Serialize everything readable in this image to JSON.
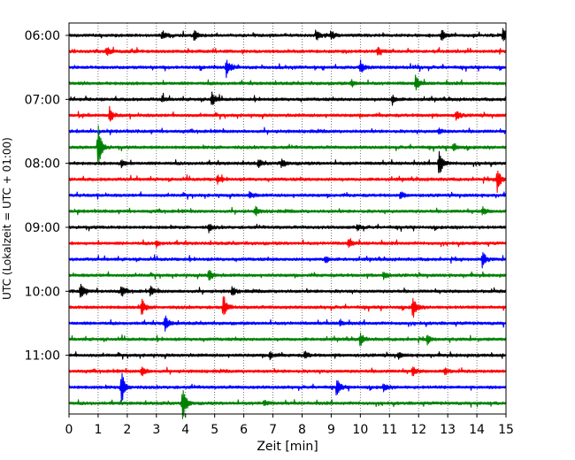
{
  "chart_data": {
    "type": "line",
    "subtype": "seismogram-helicorder",
    "xlabel": "Zeit  [min]",
    "ylabel": "UTC (Lokalzeit = UTC + 01:00)",
    "xlim": [
      0,
      15
    ],
    "x_ticks": [
      0,
      1,
      2,
      3,
      4,
      5,
      6,
      7,
      8,
      9,
      10,
      11,
      12,
      13,
      14,
      15
    ],
    "x_tick_labels": [
      "0",
      "1",
      "2",
      "3",
      "4",
      "5",
      "6",
      "7",
      "8",
      "9",
      "10",
      "11",
      "12",
      "13",
      "14",
      "15"
    ],
    "y_tick_labels": [
      "06:00",
      "07:00",
      "08:00",
      "09:00",
      "10:00",
      "11:00"
    ],
    "grid": "vertical dotted at each minute",
    "line_minutes": 15,
    "trace_color_cycle": [
      "#000000",
      "#ff0000",
      "#0000ff",
      "#008000"
    ],
    "traces": [
      {
        "start": "06:00",
        "color": "#000000",
        "events": [
          [
            3.2,
            0.3
          ],
          [
            4.3,
            0.35
          ],
          [
            8.5,
            0.3
          ],
          [
            9.0,
            0.3
          ],
          [
            12.8,
            0.35
          ],
          [
            14.9,
            0.45
          ]
        ]
      },
      {
        "start": "06:15",
        "color": "#ff0000",
        "events": [
          [
            1.3,
            0.3
          ],
          [
            10.6,
            0.25
          ]
        ]
      },
      {
        "start": "06:30",
        "color": "#0000ff",
        "events": [
          [
            5.4,
            0.6
          ],
          [
            10.0,
            0.45
          ]
        ]
      },
      {
        "start": "06:45",
        "color": "#008000",
        "events": [
          [
            11.9,
            0.55
          ],
          [
            9.7,
            0.2
          ]
        ]
      },
      {
        "start": "07:00",
        "color": "#000000",
        "events": [
          [
            4.9,
            0.5
          ],
          [
            11.1,
            0.3
          ],
          [
            3.2,
            0.2
          ]
        ]
      },
      {
        "start": "07:15",
        "color": "#ff0000",
        "events": [
          [
            1.4,
            0.45
          ],
          [
            13.3,
            0.35
          ]
        ]
      },
      {
        "start": "07:30",
        "color": "#0000ff",
        "events": [
          [
            12.7,
            0.2
          ]
        ]
      },
      {
        "start": "07:45",
        "color": "#008000",
        "events": [
          [
            1.0,
            1.6
          ],
          [
            13.2,
            0.3
          ]
        ]
      },
      {
        "start": "08:00",
        "color": "#000000",
        "events": [
          [
            1.8,
            0.3
          ],
          [
            6.5,
            0.25
          ],
          [
            7.3,
            0.3
          ],
          [
            12.7,
            1.0
          ]
        ]
      },
      {
        "start": "08:15",
        "color": "#ff0000",
        "events": [
          [
            14.7,
            0.8
          ],
          [
            5.1,
            0.25
          ]
        ]
      },
      {
        "start": "08:30",
        "color": "#0000ff",
        "events": [
          [
            6.2,
            0.25
          ],
          [
            11.4,
            0.2
          ]
        ]
      },
      {
        "start": "08:45",
        "color": "#008000",
        "events": [
          [
            6.4,
            0.3
          ],
          [
            14.2,
            0.25
          ]
        ]
      },
      {
        "start": "09:00",
        "color": "#000000",
        "events": [
          [
            4.8,
            0.25
          ],
          [
            9.9,
            0.2
          ]
        ]
      },
      {
        "start": "09:15",
        "color": "#ff0000",
        "events": [
          [
            9.6,
            0.3
          ],
          [
            3.0,
            0.2
          ]
        ]
      },
      {
        "start": "09:30",
        "color": "#0000ff",
        "events": [
          [
            14.2,
            0.5
          ],
          [
            8.8,
            0.25
          ]
        ]
      },
      {
        "start": "09:45",
        "color": "#008000",
        "events": [
          [
            4.8,
            0.45
          ],
          [
            10.8,
            0.25
          ]
        ]
      },
      {
        "start": "10:00",
        "color": "#000000",
        "events": [
          [
            0.4,
            0.6
          ],
          [
            1.8,
            0.35
          ],
          [
            2.8,
            0.3
          ],
          [
            5.6,
            0.3
          ]
        ]
      },
      {
        "start": "10:15",
        "color": "#ff0000",
        "events": [
          [
            2.5,
            0.55
          ],
          [
            5.3,
            0.8
          ],
          [
            11.8,
            0.8
          ]
        ]
      },
      {
        "start": "10:30",
        "color": "#0000ff",
        "events": [
          [
            3.3,
            0.6
          ],
          [
            9.3,
            0.2
          ]
        ]
      },
      {
        "start": "10:45",
        "color": "#008000",
        "events": [
          [
            10.0,
            0.45
          ],
          [
            12.3,
            0.3
          ]
        ]
      },
      {
        "start": "11:00",
        "color": "#000000",
        "events": [
          [
            6.9,
            0.25
          ],
          [
            8.1,
            0.25
          ],
          [
            11.3,
            0.2
          ]
        ]
      },
      {
        "start": "11:15",
        "color": "#ff0000",
        "events": [
          [
            2.5,
            0.35
          ],
          [
            11.8,
            0.3
          ],
          [
            12.9,
            0.25
          ]
        ]
      },
      {
        "start": "11:30",
        "color": "#0000ff",
        "events": [
          [
            1.8,
            1.2
          ],
          [
            9.2,
            0.6
          ],
          [
            10.8,
            0.25
          ]
        ]
      },
      {
        "start": "11:45",
        "color": "#008000",
        "events": [
          [
            3.9,
            1.3
          ],
          [
            6.7,
            0.2
          ]
        ]
      }
    ]
  }
}
